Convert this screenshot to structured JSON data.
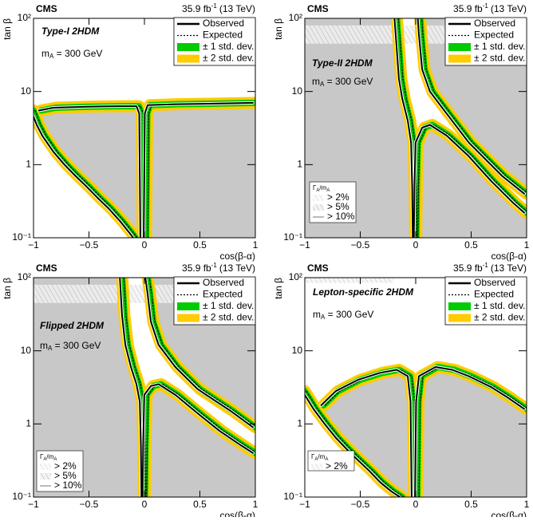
{
  "chart_data": [
    {
      "type": "contour",
      "experiment": "CMS",
      "luminosity": [
        "35.9 fb",
        "-1",
        "(13 TeV)"
      ],
      "title": "Type-I 2HDM",
      "mass_label": [
        "m",
        "A",
        " = 300 GeV"
      ],
      "xlabel": "cos(β-α)",
      "ylabel": "tan β",
      "xlim": [
        -1,
        1
      ],
      "ylim": [
        0.1,
        100
      ],
      "log_y": true,
      "xticks": [
        {
          "value": -1,
          "label": "−1"
        },
        {
          "value": -0.5,
          "label": "−0.5"
        },
        0,
        0.5,
        1
      ],
      "yticks": [
        {
          "value": 0.1,
          "label": "10⁻¹"
        },
        1,
        10,
        {
          "value": 100,
          "label": "10²"
        }
      ],
      "legend": "upper right",
      "excluded_color": "#c8c8c8",
      "series": [
        {
          "name": "Observed",
          "color": "#000000",
          "x": [
            -1,
            -0.95,
            -0.9,
            -0.8,
            -0.7,
            -0.6,
            -0.5,
            -0.4,
            -0.3,
            -0.2,
            -0.12,
            -0.08,
            null,
            -0.93,
            -0.8,
            -0.5,
            -0.2,
            -0.05,
            -0.025,
            -0.015,
            null,
            0.015,
            0.025,
            0.05,
            0.3,
            0.6,
            1
          ],
          "y": [
            5.5,
            3.5,
            2.5,
            1.5,
            1.0,
            0.7,
            0.5,
            0.35,
            0.25,
            0.17,
            0.12,
            0.1,
            null,
            5.5,
            6,
            6.2,
            6.3,
            6.3,
            5,
            0.1,
            null,
            0.1,
            5,
            6.5,
            6.7,
            6.8,
            7
          ]
        },
        {
          "name": "Expected",
          "color": "#000000",
          "dashed": true
        },
        {
          "name": "± 1 std. dev.",
          "color": "#00cc00"
        },
        {
          "name": "± 2 std. dev.",
          "color": "#ffcc00"
        }
      ],
      "allowed_region": {
        "x": [
          -1,
          -0.08,
          -0.12,
          -0.2,
          -0.3,
          -0.4,
          -0.5,
          -0.6,
          -0.7,
          -0.8,
          -0.9,
          -0.95,
          -0.93,
          -0.8,
          -0.5,
          -0.2,
          -0.05,
          -0.025,
          -0.015,
          0.015,
          0.025,
          0.05,
          0.3,
          0.6,
          1,
          1,
          -1
        ],
        "y": [
          0.1,
          0.1,
          0.12,
          0.17,
          0.25,
          0.35,
          0.5,
          0.7,
          1,
          1.5,
          2.5,
          3.5,
          5.5,
          6,
          6.2,
          6.3,
          6.3,
          5,
          0.1,
          0.1,
          5,
          6.5,
          6.7,
          6.8,
          7,
          100,
          100
        ]
      }
    },
    {
      "type": "contour",
      "experiment": "CMS",
      "luminosity": [
        "35.9 fb",
        "-1",
        "(13 TeV)"
      ],
      "title": "Type-II 2HDM",
      "mass_label": [
        "m",
        "A",
        " = 300 GeV"
      ],
      "xlabel": "cos(β-α)",
      "ylabel": "tan β",
      "xlim": [
        -1,
        1
      ],
      "ylim": [
        0.1,
        100
      ],
      "log_y": true,
      "xticks": [
        {
          "value": -1,
          "label": "−1"
        },
        {
          "value": -0.5,
          "label": "−0.5"
        },
        0,
        0.5,
        1
      ],
      "yticks": [
        {
          "value": 0.1,
          "label": "10⁻¹"
        },
        1,
        10,
        {
          "value": 100,
          "label": "10²"
        }
      ],
      "legend": "upper right",
      "excluded_color": "#c8c8c8",
      "series": [
        {
          "name": "Observed",
          "color": "#000000",
          "x": [
            -0.17,
            -0.15,
            -0.13,
            -0.1,
            -0.05,
            -0.02,
            -0.01,
            -0.005,
            null,
            0.005,
            0.01,
            0.02,
            0.08,
            0.15,
            0.3,
            0.5,
            0.7,
            0.9,
            1,
            null,
            1,
            0.8,
            0.5,
            0.3,
            0.15,
            0.08,
            0.05,
            0.04
          ],
          "y": [
            100,
            40,
            15,
            8,
            4,
            2,
            0.5,
            0.1,
            null,
            0.1,
            0.5,
            2,
            3.2,
            3.5,
            2.5,
            1.3,
            0.6,
            0.3,
            0.22,
            null,
            0.4,
            0.7,
            2,
            5,
            10,
            20,
            60,
            100
          ]
        },
        {
          "name": "Expected",
          "color": "#000000",
          "dashed": true
        },
        {
          "name": "± 1 std. dev.",
          "color": "#00cc00"
        },
        {
          "name": "± 2 std. dev.",
          "color": "#ffcc00"
        }
      ],
      "allowed_region": {
        "x": [
          -0.17,
          -0.15,
          -0.13,
          -0.1,
          -0.05,
          -0.02,
          -0.01,
          -0.005,
          0.005,
          0.01,
          0.02,
          0.08,
          0.15,
          0.3,
          0.5,
          0.7,
          0.9,
          1,
          1,
          0.8,
          0.5,
          0.3,
          0.15,
          0.08,
          0.05,
          0.04
        ],
        "y": [
          100,
          40,
          15,
          8,
          4,
          2,
          0.5,
          0.1,
          0.1,
          0.5,
          2,
          3.2,
          3.5,
          2.5,
          1.3,
          0.6,
          0.3,
          0.22,
          0.4,
          0.7,
          2,
          5,
          10,
          20,
          60,
          100
        ]
      },
      "hatched_region": {
        "x": [
          -1,
          1
        ],
        "y": [
          45,
          80
        ]
      },
      "width_legend": {
        "title": [
          "Γ",
          "A",
          "/m",
          "A"
        ],
        "entries": [
          "> 2%",
          "> 5%",
          "> 10%"
        ]
      }
    },
    {
      "type": "contour",
      "experiment": "CMS",
      "luminosity": [
        "35.9 fb",
        "-1",
        "(13 TeV)"
      ],
      "title": "Flipped 2HDM",
      "mass_label": [
        "m",
        "A",
        " = 300 GeV"
      ],
      "xlabel": "cos(β-α)",
      "ylabel": "tan β",
      "xlim": [
        -1,
        1
      ],
      "ylim": [
        0.1,
        100
      ],
      "log_y": true,
      "xticks": [
        {
          "value": -1,
          "label": "−1"
        },
        {
          "value": -0.5,
          "label": "−0.5"
        },
        0,
        0.5,
        1
      ],
      "yticks": [
        {
          "value": 0.1,
          "label": "10⁻¹"
        },
        1,
        10,
        {
          "value": 100,
          "label": "10²"
        }
      ],
      "legend": "upper right",
      "excluded_color": "#c8c8c8",
      "series": [
        {
          "name": "Observed",
          "color": "#000000",
          "x": [
            -0.2,
            -0.18,
            -0.15,
            -0.1,
            -0.05,
            -0.02,
            -0.01,
            -0.005,
            null,
            0.005,
            0.01,
            0.02,
            0.08,
            0.15,
            0.3,
            0.5,
            0.7,
            0.9,
            1,
            null,
            1,
            0.8,
            0.5,
            0.3,
            0.15,
            0.08,
            0.05,
            0.03
          ],
          "y": [
            100,
            30,
            12,
            6,
            3.5,
            2,
            0.5,
            0.1,
            null,
            0.1,
            0.5,
            2.5,
            3.3,
            3.5,
            2.5,
            1.4,
            0.8,
            0.5,
            0.4,
            null,
            0.9,
            1.5,
            3,
            6,
            12,
            25,
            60,
            100
          ]
        },
        {
          "name": "Expected",
          "color": "#000000",
          "dashed": true
        },
        {
          "name": "± 1 std. dev.",
          "color": "#00cc00"
        },
        {
          "name": "± 2 std. dev.",
          "color": "#ffcc00"
        }
      ],
      "allowed_region": {
        "x": [
          -0.2,
          -0.18,
          -0.15,
          -0.1,
          -0.05,
          -0.02,
          -0.01,
          -0.005,
          0.005,
          0.01,
          0.02,
          0.08,
          0.15,
          0.3,
          0.5,
          0.7,
          0.9,
          1,
          1,
          0.8,
          0.5,
          0.3,
          0.15,
          0.08,
          0.05,
          0.03
        ],
        "y": [
          100,
          30,
          12,
          6,
          3.5,
          2,
          0.5,
          0.1,
          0.1,
          0.5,
          2.5,
          3.3,
          3.5,
          2.5,
          1.4,
          0.8,
          0.5,
          0.4,
          0.9,
          1.5,
          3,
          6,
          12,
          25,
          60,
          100
        ]
      },
      "hatched_region": {
        "x": [
          -1,
          1
        ],
        "y": [
          45,
          80
        ]
      },
      "width_legend": {
        "title": [
          "Γ",
          "A",
          "/m",
          "A"
        ],
        "entries": [
          "> 2%",
          "> 5%",
          "> 10%"
        ]
      }
    },
    {
      "type": "contour",
      "experiment": "CMS",
      "luminosity": [
        "35.9 fb",
        "-1",
        "(13 TeV)"
      ],
      "title": "Lepton-specific 2HDM",
      "mass_label": [
        "m",
        "A",
        " = 300 GeV"
      ],
      "xlabel": "cos(β-α)",
      "ylabel": "tan β",
      "xlim": [
        -1,
        1
      ],
      "ylim": [
        0.1,
        100
      ],
      "log_y": true,
      "xticks": [
        {
          "value": -1,
          "label": "−1"
        },
        {
          "value": -0.5,
          "label": "−0.5"
        },
        0,
        0.5,
        1
      ],
      "yticks": [
        {
          "value": 0.1,
          "label": "10⁻¹"
        },
        1,
        10,
        {
          "value": 100,
          "label": "10²"
        }
      ],
      "legend": "upper right",
      "excluded_color": "#c8c8c8",
      "series": [
        {
          "name": "Observed",
          "color": "#000000",
          "x": [
            -1,
            -0.9,
            -0.8,
            -0.7,
            -0.6,
            -0.5,
            -0.4,
            -0.3,
            -0.2,
            -0.12,
            null,
            -0.83,
            -0.7,
            -0.5,
            -0.3,
            -0.15,
            -0.05,
            -0.025,
            -0.015,
            null,
            0.015,
            0.025,
            0.05,
            0.2,
            0.35,
            0.5,
            0.7,
            0.85,
            1
          ],
          "y": [
            2.8,
            1.6,
            1,
            0.65,
            0.45,
            0.32,
            0.23,
            0.16,
            0.12,
            0.1,
            null,
            1.8,
            2.8,
            4,
            5,
            5.5,
            4.5,
            2,
            0.1,
            null,
            0.1,
            2,
            4.5,
            6,
            5.5,
            4.5,
            3.2,
            2.3,
            1.6
          ]
        },
        {
          "name": "Expected",
          "color": "#000000",
          "dashed": true
        },
        {
          "name": "± 1 std. dev.",
          "color": "#00cc00"
        },
        {
          "name": "± 2 std. dev.",
          "color": "#ffcc00"
        }
      ],
      "allowed_region": {
        "x": [
          -1,
          -0.12,
          -0.2,
          -0.3,
          -0.4,
          -0.5,
          -0.6,
          -0.7,
          -0.8,
          -0.9,
          -0.83,
          -0.7,
          -0.5,
          -0.3,
          -0.15,
          -0.05,
          -0.025,
          -0.015,
          0.015,
          0.025,
          0.05,
          0.2,
          0.35,
          0.5,
          0.7,
          0.85,
          1,
          1,
          -1
        ],
        "y": [
          0.1,
          0.1,
          0.12,
          0.16,
          0.23,
          0.32,
          0.45,
          0.65,
          1,
          1.6,
          1.8,
          2.8,
          4,
          5,
          5.5,
          4.5,
          2,
          0.1,
          0.1,
          2,
          4.5,
          6,
          5.5,
          4.5,
          3.2,
          2.3,
          1.6,
          100,
          100
        ]
      },
      "hatched_region": {
        "x": [
          -1,
          -0.2
        ],
        "y": [
          85,
          100
        ]
      },
      "width_legend": {
        "title": [
          "Γ",
          "A",
          "/m",
          "A"
        ],
        "entries": [
          "> 2%"
        ]
      }
    }
  ]
}
